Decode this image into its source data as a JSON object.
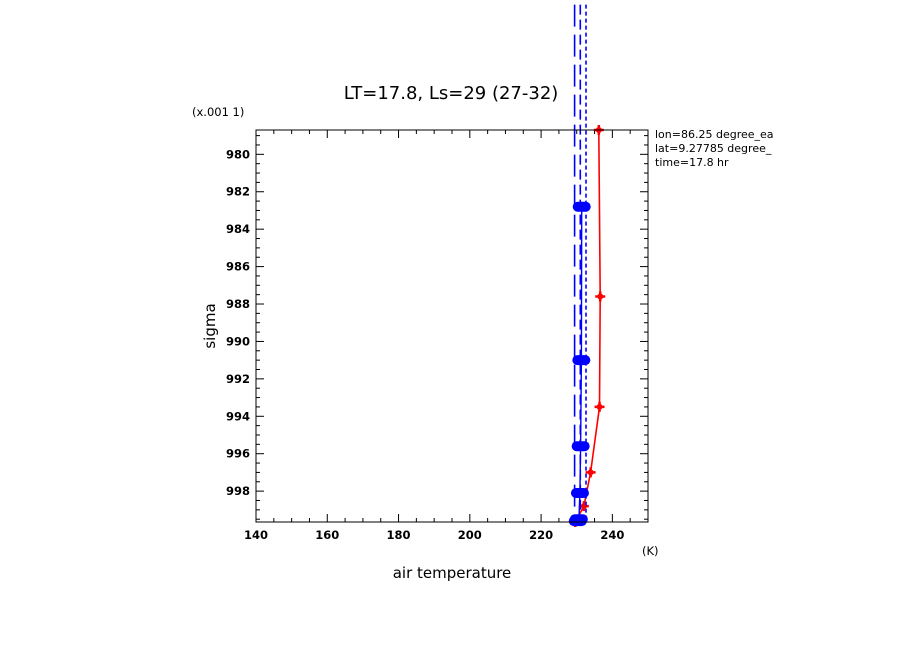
{
  "chart_data": {
    "type": "line",
    "title": "LT=17.8, Ls=29 (27-32)",
    "xlabel": "air temperature",
    "ylabel": "sigma",
    "x_unit": "(K)",
    "y_unit": "(x.001 1)",
    "xlim": [
      140,
      250
    ],
    "ylim": [
      999.65,
      978.7
    ],
    "x_ticks": [
      "140",
      "160",
      "180",
      "200",
      "220",
      "240"
    ],
    "x_tick_values": [
      140,
      160,
      180,
      200,
      220,
      240
    ],
    "y_ticks": [
      "980",
      "982",
      "984",
      "986",
      "988",
      "990",
      "992",
      "994",
      "996",
      "998"
    ],
    "y_tick_values": [
      980,
      982,
      984,
      986,
      988,
      990,
      992,
      994,
      996,
      998
    ],
    "grid": false,
    "annotations": [
      "lon=86.25 degree_ea",
      "lat=9.27785 degree_",
      "time=17.8 hr"
    ],
    "series": [
      {
        "color": "#ff0000",
        "style": "solid-markers",
        "x": [
          236.2,
          236.6,
          236.4,
          233.9,
          232.0,
          229.6
        ],
        "y": [
          978.7,
          987.6,
          993.5,
          997.0,
          998.8,
          999.65
        ]
      },
      {
        "color": "#0000ff",
        "style": "thick-dots",
        "x": [
          231.4,
          231.3,
          231.1,
          230.9,
          230.6,
          230.3
        ],
        "y": [
          982.8,
          991.0,
          995.6,
          998.1,
          999.5,
          999.6
        ]
      },
      {
        "color": "#0000ff",
        "style": "long-dash",
        "x": [
          229.4,
          229.4
        ],
        "y": [
          972.0,
          999.65
        ]
      },
      {
        "color": "#0000ff",
        "style": "dash",
        "x": [
          231.0,
          231.0
        ],
        "y": [
          972.0,
          999.65
        ]
      },
      {
        "color": "#0000ff",
        "style": "short-dash",
        "x": [
          232.6,
          232.6
        ],
        "y": [
          972.0,
          999.65
        ]
      }
    ]
  }
}
